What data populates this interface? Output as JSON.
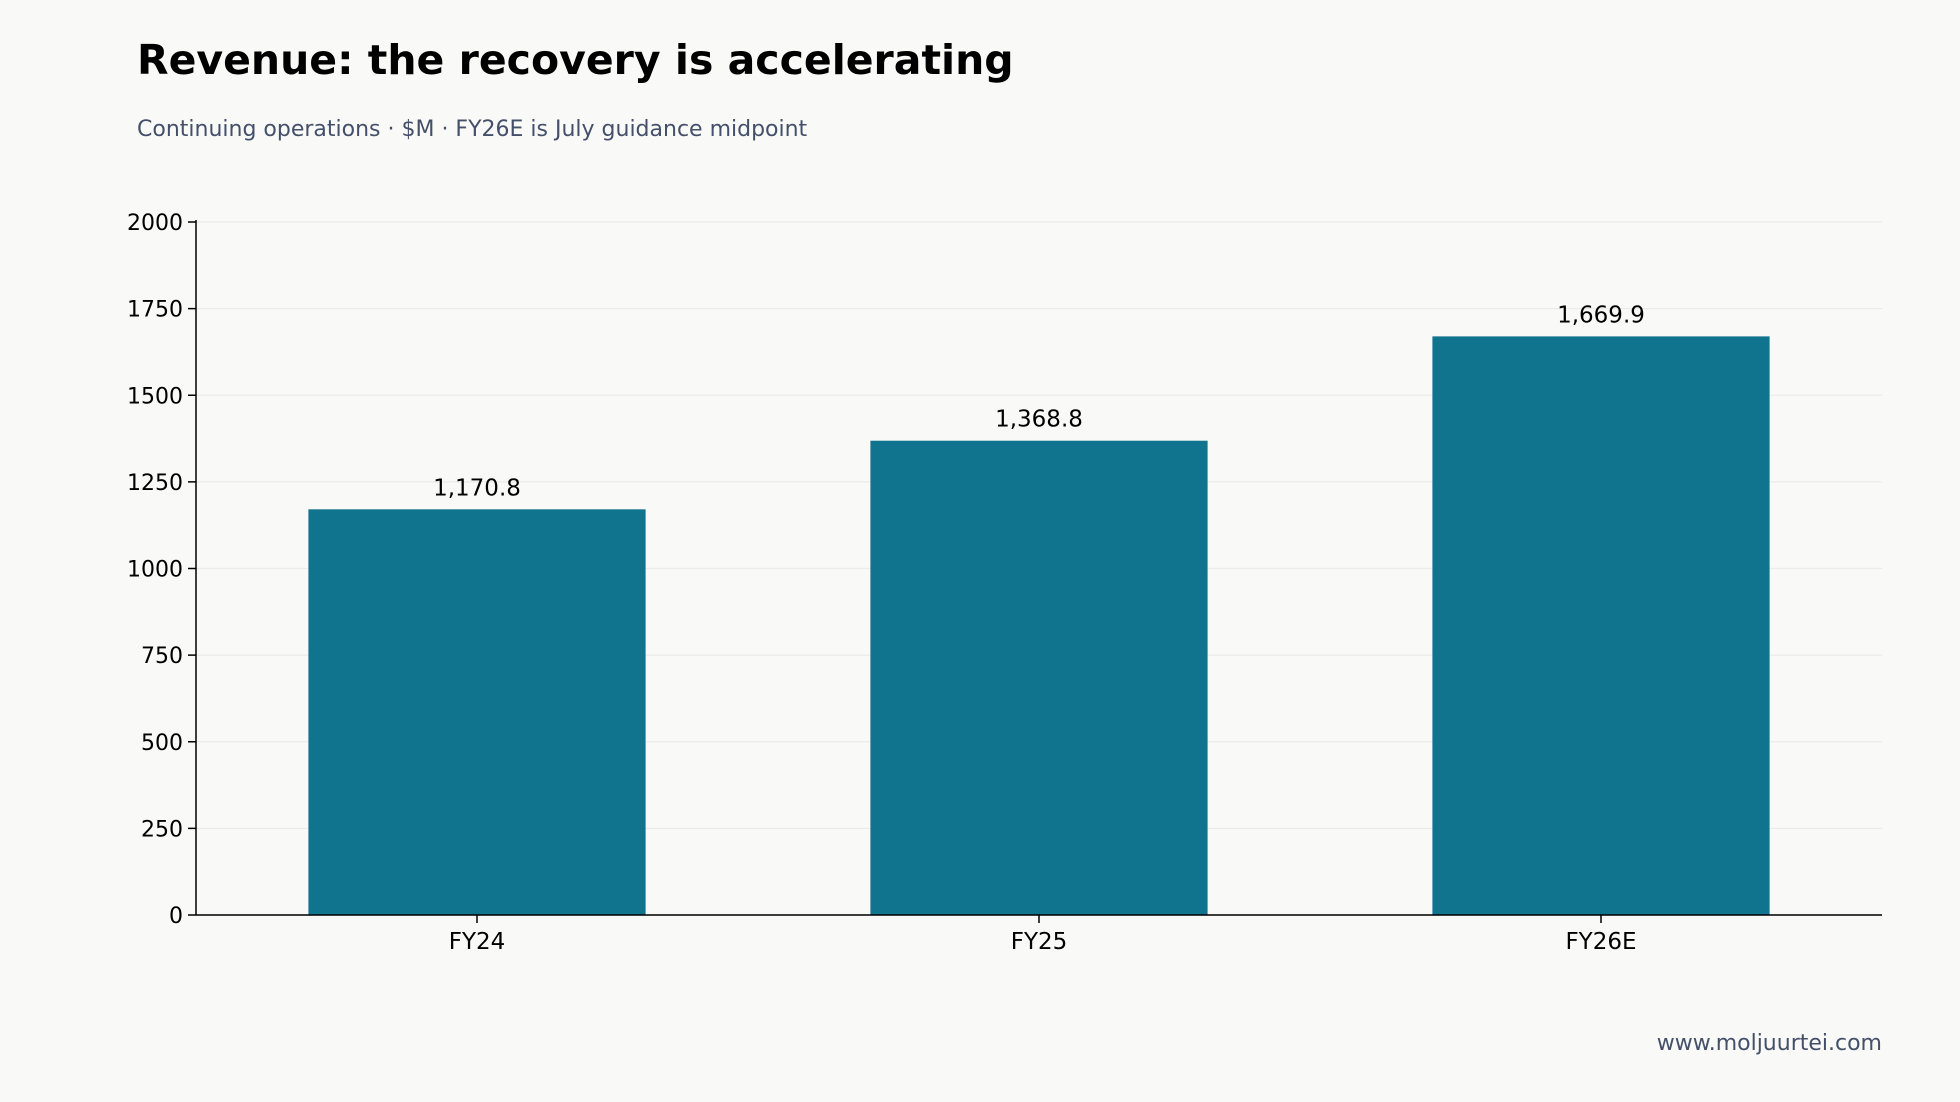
{
  "header": {
    "title": "Revenue: the recovery is accelerating",
    "subtitle": "Continuing operations · $M · FY26E is July guidance midpoint"
  },
  "footer": {
    "source": "www.moljuurtei.com"
  },
  "colors": {
    "bar": "#10748f",
    "grid": "#ebebeb",
    "axis": "#000000",
    "text": "#000000",
    "muted": "#44506a",
    "background": "#f9f9f7"
  },
  "chart_data": {
    "type": "bar",
    "categories": [
      "FY24",
      "FY25",
      "FY26E"
    ],
    "values": [
      1170.8,
      1368.8,
      1669.9
    ],
    "value_labels": [
      "1,170.8",
      "1,368.8",
      "1,669.9"
    ],
    "title": "Revenue: the recovery is accelerating",
    "subtitle": "Continuing operations · $M · FY26E is July guidance midpoint",
    "xlabel": "",
    "ylabel": "",
    "ylim": [
      0,
      2000
    ],
    "yticks": [
      0,
      250,
      500,
      750,
      1000,
      1250,
      1500,
      1750,
      2000
    ],
    "grid": "horizontal",
    "legend": "none"
  }
}
